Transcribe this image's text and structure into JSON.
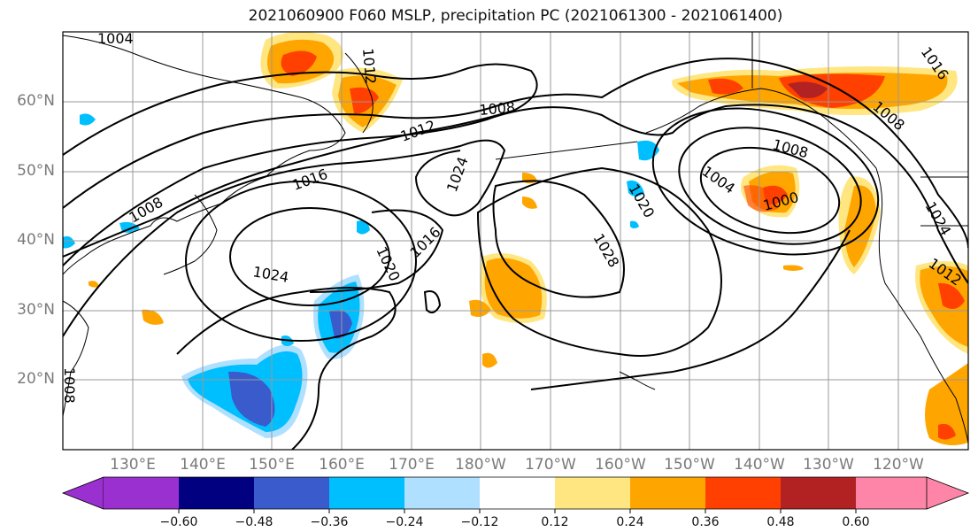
{
  "title": "2021060900 F060 MSLP, precipitation PC (2021061300 - 2021061400)",
  "lat_labels": [
    "60°N",
    "50°N",
    "40°N",
    "30°N",
    "20°N"
  ],
  "lon_labels": [
    "130°E",
    "140°E",
    "150°E",
    "160°E",
    "170°E",
    "180°W",
    "170°W",
    "160°W",
    "150°W",
    "140°W",
    "130°W",
    "120°W"
  ],
  "isobar_labels": [
    "1004",
    "1012",
    "1008",
    "1012",
    "1016",
    "1008",
    "1024",
    "1016",
    "1020",
    "1024",
    "1028",
    "1020",
    "1004",
    "1008",
    "1000",
    "1016",
    "1008",
    "1012",
    "1024",
    "1008"
  ],
  "colorbar": {
    "ticks": [
      "−0.60",
      "−0.48",
      "−0.36",
      "−0.24",
      "−0.12",
      "0.12",
      "0.24",
      "0.36",
      "0.48",
      "0.60"
    ],
    "colors": [
      "#9b30d0",
      "#000080",
      "#3a5bcc",
      "#00bfff",
      "#b0e0ff",
      "#ffffff",
      "#ffe680",
      "#ffa500",
      "#ff4000",
      "#b22222",
      "#ff85a8"
    ]
  },
  "precip_colors": {
    "neg_light": "#b0e0ff",
    "neg_med": "#00bfff",
    "neg_strong": "#3a5bcc",
    "pos_light": "#ffe680",
    "pos_med": "#ffa500",
    "pos_strong": "#ff4000",
    "pos_vstrong": "#b22222"
  }
}
